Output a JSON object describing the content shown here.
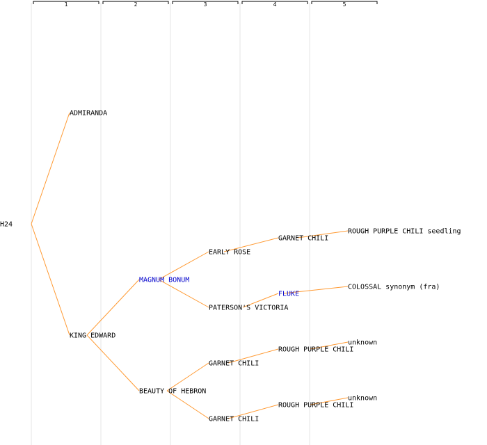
{
  "generations": [
    "1",
    "2",
    "3",
    "4",
    "5"
  ],
  "colors": {
    "edge": "#ff9a33",
    "guide": "#e6e6e6",
    "bracket": "#000000",
    "text": "#000000",
    "highlight": "#0000cc"
  },
  "tree": {
    "root": "H24",
    "nodes": [
      {
        "id": "n1",
        "label": "ADMIRANDA",
        "gen": 1,
        "parent": "root"
      },
      {
        "id": "n2",
        "label": "KING EDWARD",
        "gen": 1,
        "parent": "root"
      },
      {
        "id": "n3",
        "label": "MAGNUM BONUM",
        "gen": 2,
        "parent": "n2",
        "highlight": true
      },
      {
        "id": "n4",
        "label": "BEAUTY OF HEBRON",
        "gen": 2,
        "parent": "n2"
      },
      {
        "id": "n5",
        "label": "EARLY ROSE",
        "gen": 3,
        "parent": "n3"
      },
      {
        "id": "n6",
        "label": "PATERSON'S VICTORIA",
        "gen": 3,
        "parent": "n3"
      },
      {
        "id": "n7",
        "label": "GARNET CHILI",
        "gen": 3,
        "parent": "n4"
      },
      {
        "id": "n8",
        "label": "GARNET CHILI",
        "gen": 3,
        "parent": "n4"
      },
      {
        "id": "n9",
        "label": "GARNET CHILI",
        "gen": 4,
        "parent": "n5"
      },
      {
        "id": "n10",
        "label": "FLUKE",
        "gen": 4,
        "parent": "n6",
        "highlight": true
      },
      {
        "id": "n11",
        "label": "ROUGH PURPLE CHILI",
        "gen": 4,
        "parent": "n7"
      },
      {
        "id": "n12",
        "label": "ROUGH PURPLE CHILI",
        "gen": 4,
        "parent": "n8"
      },
      {
        "id": "n13",
        "label": "ROUGH PURPLE CHILI seedling",
        "gen": 5,
        "parent": "n9"
      },
      {
        "id": "n14",
        "label": "COLOSSAL synonym (fra)",
        "gen": 5,
        "parent": "n10"
      },
      {
        "id": "n15",
        "label": "unknown",
        "gen": 5,
        "parent": "n11"
      },
      {
        "id": "n16",
        "label": "unknown",
        "gen": 5,
        "parent": "n12"
      }
    ]
  }
}
